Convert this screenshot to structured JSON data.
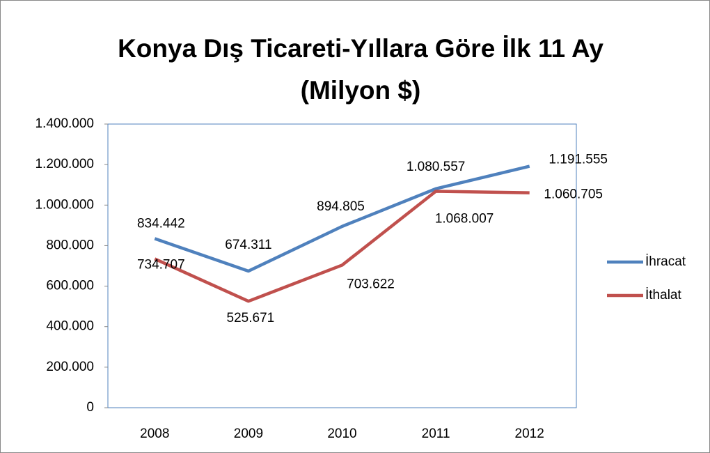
{
  "chart_data": {
    "type": "line",
    "title": [
      "Konya Dış Ticareti-Yıllara Göre İlk 11 Ay",
      "(Milyon $)"
    ],
    "categories": [
      "2008",
      "2009",
      "2010",
      "2011",
      "2012"
    ],
    "series": [
      {
        "name": "İhracat",
        "color": "#4f81bd",
        "values": [
          834442,
          674311,
          894805,
          1080557,
          1191555
        ],
        "value_labels": [
          "834.442",
          "674.311",
          "894.805",
          "1.080.557",
          "1.191.555"
        ]
      },
      {
        "name": "İthalat",
        "color": "#c0504d",
        "values": [
          734707,
          525671,
          703622,
          1068007,
          1060705
        ],
        "value_labels": [
          "734.707",
          "525.671",
          "703.622",
          "1.068.007",
          "1.060.705"
        ]
      }
    ],
    "ylim": [
      0,
      1400000
    ],
    "yticks": [
      0,
      {
        "value": 200000,
        "label": "200.000"
      },
      {
        "value": 400000,
        "label": "400.000"
      },
      {
        "value": 600000,
        "label": "600.000"
      },
      {
        "value": 800000,
        "label": "800.000"
      },
      {
        "value": 1000000,
        "label": "1.000.000"
      },
      {
        "value": 1200000,
        "label": "1.200.000"
      },
      {
        "value": 1400000,
        "label": "1.400.000"
      }
    ],
    "grid": false,
    "legend": "right"
  }
}
